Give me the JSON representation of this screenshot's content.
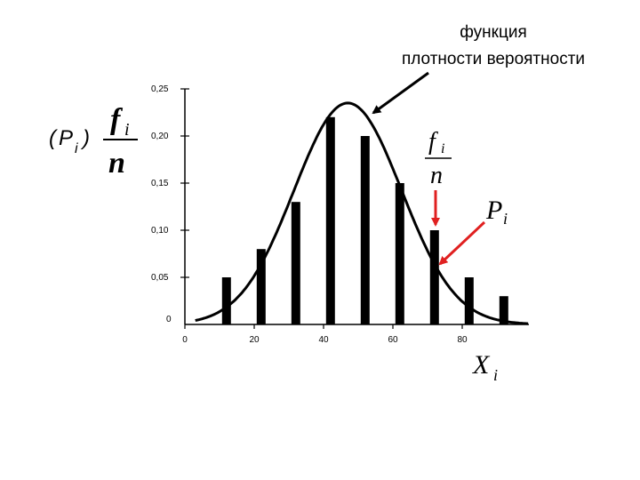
{
  "chart_data": {
    "type": "bar",
    "title_line1": "функция",
    "title_line2": "плотности вероятности",
    "y_label": {
      "paren_open": "(",
      "paren_var": "P",
      "paren_sub": "i",
      "paren_close": ")",
      "frac_num": "f",
      "frac_num_sub": "i",
      "frac_den": "n"
    },
    "annotation_fraction": {
      "num": "f",
      "num_sub": "i",
      "den": "n"
    },
    "annotation_p": {
      "main": "P",
      "sub": "i"
    },
    "x_label": {
      "main": "X",
      "sub": "i"
    },
    "xlim": [
      0,
      100
    ],
    "ylim": [
      0,
      0.25
    ],
    "x_ticks": [
      {
        "value": 0,
        "label": "0"
      },
      {
        "value": 20,
        "label": "20"
      },
      {
        "value": 40,
        "label": "40"
      },
      {
        "value": 60,
        "label": "60"
      },
      {
        "value": 80,
        "label": "80"
      }
    ],
    "y_ticks": [
      {
        "value": 0,
        "label": "0"
      },
      {
        "value": 0.05,
        "label": "0,05"
      },
      {
        "value": 0.1,
        "label": "0,10"
      },
      {
        "value": 0.15,
        "label": "0,15"
      },
      {
        "value": 0.2,
        "label": "0,20"
      },
      {
        "value": 0.25,
        "label": "0,25"
      }
    ],
    "x": [
      12,
      22,
      32,
      42,
      52,
      62,
      72,
      82,
      92
    ],
    "values": [
      0.05,
      0.08,
      0.13,
      0.22,
      0.2,
      0.15,
      0.1,
      0.05,
      0.03
    ],
    "curve": {
      "type": "normal density",
      "mean": 47,
      "peak": 0.235,
      "sigma": 15.5
    },
    "colors": {
      "bars": "#000000",
      "curve": "#000000",
      "arrows_black": "#000000",
      "arrows_red": "#e02020"
    }
  }
}
